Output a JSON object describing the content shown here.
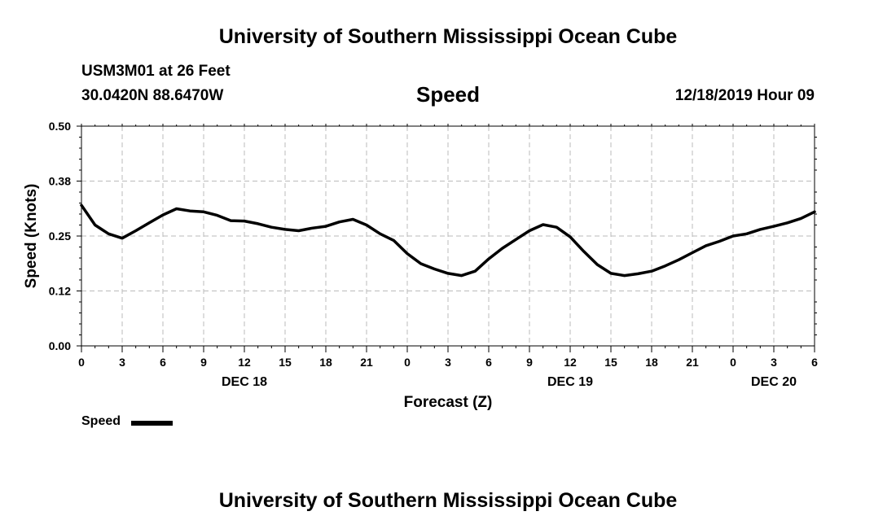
{
  "header": {
    "top_title": "University of Southern Mississippi Ocean Cube",
    "station": "USM3M01 at 26 Feet",
    "coords": "30.0420N 88.6470W",
    "timestamp": "12/18/2019 Hour 09"
  },
  "footer": {
    "bottom_title": "University of Southern Mississippi Ocean Cube"
  },
  "legend": {
    "label": "Speed"
  },
  "colors": {
    "line": "#000000",
    "grid": "#bbbbbb",
    "background": "#ffffff"
  },
  "chart_data": {
    "type": "line",
    "title": "Speed",
    "xlabel": "Forecast (Z)",
    "ylabel": "Speed (Knots)",
    "xlim": [
      0,
      54
    ],
    "ylim": [
      0,
      0.5
    ],
    "grid": true,
    "legend_position": "bottom-left",
    "yticks": [
      0.0,
      0.125,
      0.25,
      0.375,
      0.5
    ],
    "ytick_labels": [
      "0.00",
      "0.12",
      "0.25",
      "0.38",
      "0.50"
    ],
    "xticks": [
      0,
      3,
      6,
      9,
      12,
      15,
      18,
      21,
      24,
      27,
      30,
      33,
      36,
      39,
      42,
      45,
      48,
      51,
      54
    ],
    "xtick_labels": [
      "0",
      "3",
      "6",
      "9",
      "12",
      "15",
      "18",
      "21",
      "0",
      "3",
      "6",
      "9",
      "12",
      "15",
      "18",
      "21",
      "0",
      "3",
      "6"
    ],
    "day_labels": [
      {
        "label": "DEC 18",
        "x": 12
      },
      {
        "label": "DEC 19",
        "x": 36
      },
      {
        "label": "DEC 20",
        "x": 51
      }
    ],
    "series": [
      {
        "name": "Speed",
        "x": [
          0,
          1,
          2,
          3,
          4,
          5,
          6,
          7,
          8,
          9,
          10,
          11,
          12,
          13,
          14,
          15,
          16,
          17,
          18,
          19,
          20,
          21,
          22,
          23,
          24,
          25,
          26,
          27,
          28,
          29,
          30,
          31,
          32,
          33,
          34,
          35,
          36,
          37,
          38,
          39,
          40,
          41,
          42,
          43,
          44,
          45,
          46,
          47,
          48,
          49,
          50,
          51,
          52,
          53,
          54
        ],
        "values": [
          0.32,
          0.275,
          0.255,
          0.245,
          0.262,
          0.28,
          0.298,
          0.312,
          0.307,
          0.305,
          0.297,
          0.285,
          0.284,
          0.278,
          0.27,
          0.265,
          0.262,
          0.268,
          0.272,
          0.282,
          0.288,
          0.275,
          0.255,
          0.24,
          0.21,
          0.187,
          0.175,
          0.165,
          0.16,
          0.17,
          0.198,
          0.222,
          0.242,
          0.262,
          0.276,
          0.27,
          0.248,
          0.215,
          0.185,
          0.165,
          0.16,
          0.164,
          0.17,
          0.182,
          0.196,
          0.212,
          0.228,
          0.238,
          0.25,
          0.255,
          0.265,
          0.272,
          0.28,
          0.29,
          0.305
        ]
      }
    ]
  }
}
